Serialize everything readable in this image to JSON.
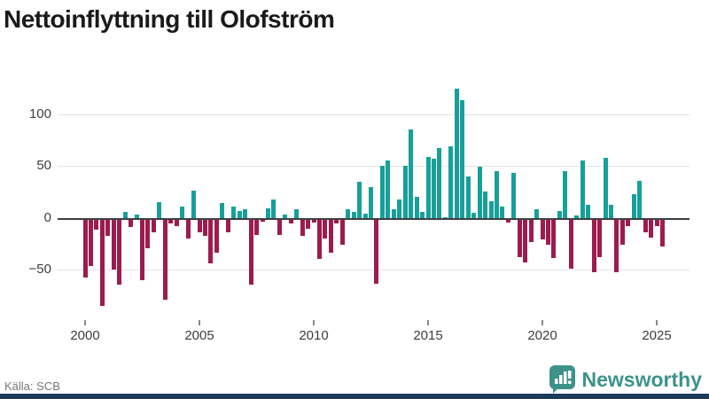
{
  "title": "Nettoinflyttning till Olofström",
  "source_label": "Källa: SCB",
  "brand": {
    "name": "Newsworthy",
    "icon": "bar-chart-speech-bubble"
  },
  "colors": {
    "positive_bar": "#17a09a",
    "negative_bar": "#9d1b4e",
    "zero_line": "#3f3f3f",
    "gridline": "#e4e4e4",
    "brand_teal": "#3d928b",
    "brand_navy": "#1d3a5c",
    "axis_text": "#3d3d3d",
    "source_text": "#767676"
  },
  "chart_data": {
    "type": "bar",
    "title": "Nettoinflyttning till Olofström",
    "xlabel": "",
    "ylabel": "",
    "frequency": "quarterly",
    "start_period": "2000 Q1",
    "end_period": "2025 Q2",
    "x_tick_labels": [
      "2000",
      "2005",
      "2010",
      "2015",
      "2020",
      "2025"
    ],
    "y_tick_values": [
      100,
      50,
      0,
      -50
    ],
    "ylim": [
      -90,
      130
    ],
    "grid": "horizontal",
    "values": [
      -56,
      -45,
      -10,
      -83,
      -16,
      -48,
      -63,
      6,
      -7,
      3,
      -58,
      -28,
      -12,
      15,
      -77,
      -4,
      -6,
      11,
      -18,
      26,
      -12,
      -16,
      -42,
      -32,
      14,
      -12,
      11,
      7,
      8,
      -63,
      -15,
      -2,
      9,
      18,
      -15,
      3,
      -4,
      8,
      -16,
      -9,
      -3,
      -38,
      -18,
      -32,
      -4,
      -24,
      8,
      6,
      35,
      4,
      30,
      -62,
      50,
      55,
      8,
      18,
      50,
      85,
      20,
      6,
      59,
      57,
      67,
      1,
      69,
      124,
      113,
      40,
      5,
      49,
      25,
      16,
      45,
      11,
      -3,
      43,
      -36,
      -41,
      -22,
      8,
      -19,
      -24,
      -37,
      7,
      45,
      -47,
      2,
      55,
      13,
      -51,
      -36,
      58,
      13,
      -51,
      -24,
      -6,
      23,
      36,
      -12,
      -17,
      -6,
      -26
    ]
  }
}
